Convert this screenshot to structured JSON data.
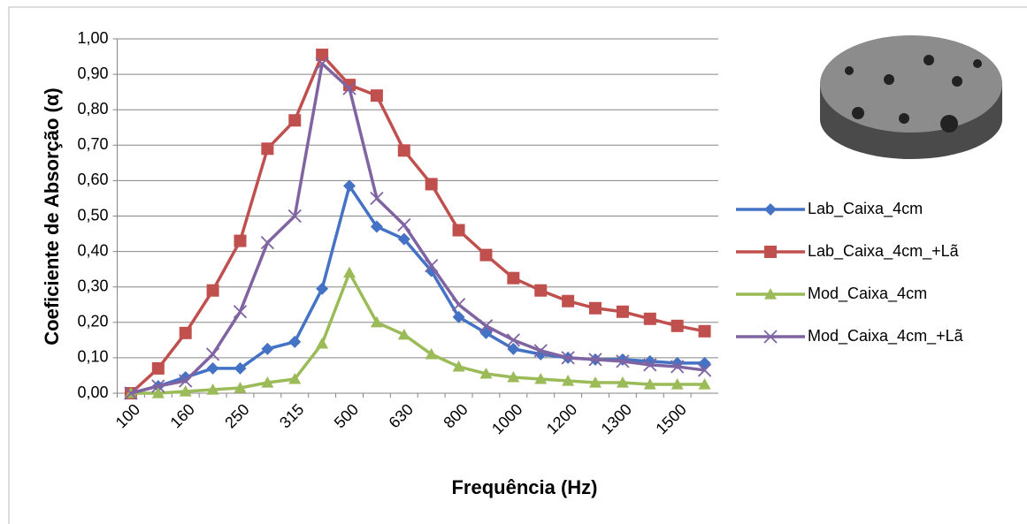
{
  "chart_data": {
    "type": "line",
    "y_axis_label": "Coeficiente de Absorção (α)",
    "x_axis_label": "Frequência (Hz)",
    "categories": [
      "100",
      null,
      "160",
      null,
      "250",
      null,
      "315",
      null,
      "500",
      null,
      "630",
      null,
      "800",
      null,
      "1000",
      null,
      "1200",
      null,
      "1300",
      null,
      "1500",
      null
    ],
    "ylim": [
      0,
      1
    ],
    "yticks": [
      {
        "value": 0,
        "label": "0,00"
      },
      {
        "value": 0.1,
        "label": "0,10"
      },
      {
        "value": 0.2,
        "label": "0,20"
      },
      {
        "value": 0.3,
        "label": "0,30"
      },
      {
        "value": 0.4,
        "label": "0,40"
      },
      {
        "value": 0.5,
        "label": "0,50"
      },
      {
        "value": 0.6,
        "label": "0,60"
      },
      {
        "value": 0.7,
        "label": "0,70"
      },
      {
        "value": 0.8,
        "label": "0,80"
      },
      {
        "value": 0.9,
        "label": "0,90"
      },
      {
        "value": 1,
        "label": "1,00"
      }
    ],
    "grid": true,
    "legend": "right",
    "series": [
      {
        "name": "Lab_Caixa_4cm",
        "color": "#4472c4",
        "marker": "diamond",
        "values": [
          0.0,
          0.02,
          0.045,
          0.07,
          0.07,
          0.125,
          0.145,
          0.295,
          0.585,
          0.47,
          0.435,
          0.345,
          0.215,
          0.17,
          0.125,
          0.11,
          0.1,
          0.095,
          0.095,
          0.09,
          0.085,
          0.085
        ]
      },
      {
        "name": "Lab_Caixa_4cm_+Lã",
        "color": "#c0504d",
        "marker": "square",
        "values": [
          0.0,
          0.07,
          0.17,
          0.29,
          0.43,
          0.69,
          0.77,
          0.955,
          0.87,
          0.84,
          0.685,
          0.59,
          0.46,
          0.39,
          0.325,
          0.29,
          0.26,
          0.24,
          0.23,
          0.21,
          0.19,
          0.175
        ]
      },
      {
        "name": "Mod_Caixa_4cm",
        "color": "#9bbb59",
        "marker": "triangle",
        "values": [
          0.0,
          0.0,
          0.005,
          0.01,
          0.015,
          0.03,
          0.04,
          0.14,
          0.34,
          0.2,
          0.165,
          0.11,
          0.075,
          0.055,
          0.045,
          0.04,
          0.035,
          0.03,
          0.03,
          0.025,
          0.025,
          0.025
        ]
      },
      {
        "name": "Mod_Caixa_4cm_+Lã",
        "color": "#8064a2",
        "marker": "x",
        "values": [
          0.0,
          0.02,
          0.035,
          0.11,
          0.23,
          0.425,
          0.5,
          0.93,
          0.86,
          0.55,
          0.475,
          0.36,
          0.25,
          0.19,
          0.15,
          0.12,
          0.1,
          0.095,
          0.09,
          0.08,
          0.075,
          0.065
        ]
      }
    ]
  }
}
